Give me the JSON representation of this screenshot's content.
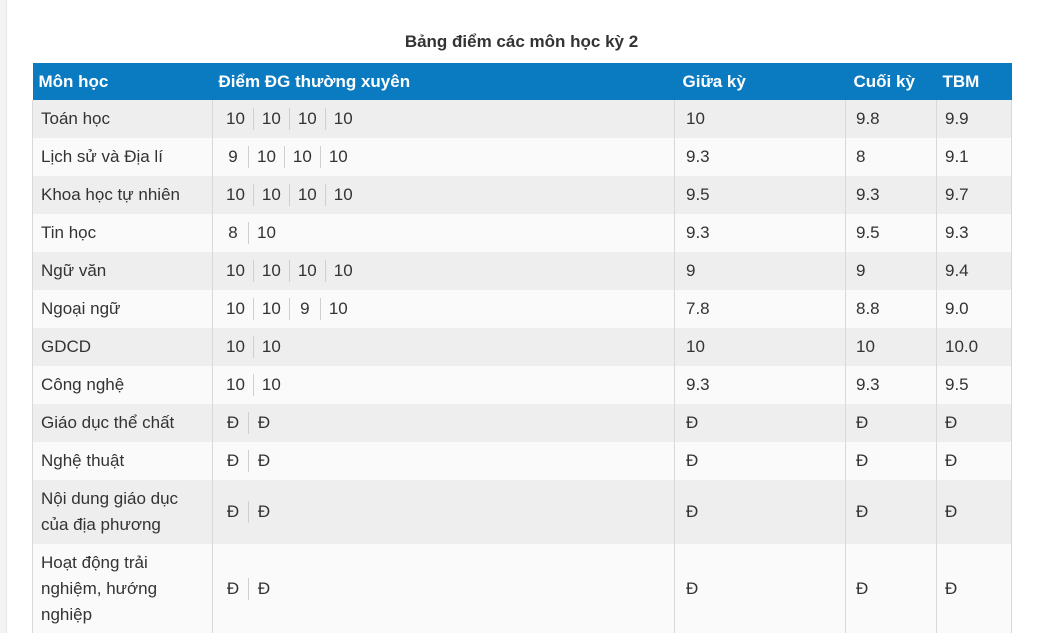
{
  "title": "Bảng điểm các môn học kỳ 2",
  "headers": {
    "subject": "Môn học",
    "regular": "Điểm ĐG thường xuyên",
    "midterm": "Giữa kỳ",
    "final": "Cuối kỳ",
    "avg": "TBM"
  },
  "rows": [
    {
      "subject": "Toán học",
      "scores": [
        "10",
        "10",
        "10",
        "10"
      ],
      "midterm": "10",
      "final": "9.8",
      "avg": "9.9"
    },
    {
      "subject": "Lịch sử và Địa lí",
      "scores": [
        "9",
        "10",
        "10",
        "10"
      ],
      "midterm": "9.3",
      "final": "8",
      "avg": "9.1"
    },
    {
      "subject": "Khoa học tự nhiên",
      "scores": [
        "10",
        "10",
        "10",
        "10"
      ],
      "midterm": "9.5",
      "final": "9.3",
      "avg": "9.7"
    },
    {
      "subject": "Tin học",
      "scores": [
        "8",
        "10",
        "",
        ""
      ],
      "midterm": "9.3",
      "final": "9.5",
      "avg": "9.3"
    },
    {
      "subject": "Ngữ văn",
      "scores": [
        "10",
        "10",
        "10",
        "10"
      ],
      "midterm": "9",
      "final": "9",
      "avg": "9.4"
    },
    {
      "subject": "Ngoại ngữ",
      "scores": [
        "10",
        "10",
        "9",
        "10"
      ],
      "midterm": "7.8",
      "final": "8.8",
      "avg": "9.0"
    },
    {
      "subject": "GDCD",
      "scores": [
        "10",
        "10",
        "",
        ""
      ],
      "midterm": "10",
      "final": "10",
      "avg": "10.0"
    },
    {
      "subject": "Công nghệ",
      "scores": [
        "10",
        "10",
        "",
        ""
      ],
      "midterm": "9.3",
      "final": "9.3",
      "avg": "9.5"
    },
    {
      "subject": "Giáo dục thể chất",
      "scores": [
        "Đ",
        "Đ",
        "",
        ""
      ],
      "midterm": "Đ",
      "final": "Đ",
      "avg": "Đ"
    },
    {
      "subject": "Nghệ thuật",
      "scores": [
        "Đ",
        "Đ",
        "",
        ""
      ],
      "midterm": "Đ",
      "final": "Đ",
      "avg": "Đ"
    },
    {
      "subject": "Nội dung giáo dục của địa phương",
      "scores": [
        "Đ",
        "Đ",
        "",
        ""
      ],
      "midterm": "Đ",
      "final": "Đ",
      "avg": "Đ"
    },
    {
      "subject": "Hoạt động trải nghiệm, hướng nghiệp",
      "scores": [
        "Đ",
        "Đ",
        "",
        ""
      ],
      "midterm": "Đ",
      "final": "Đ",
      "avg": "Đ"
    }
  ]
}
